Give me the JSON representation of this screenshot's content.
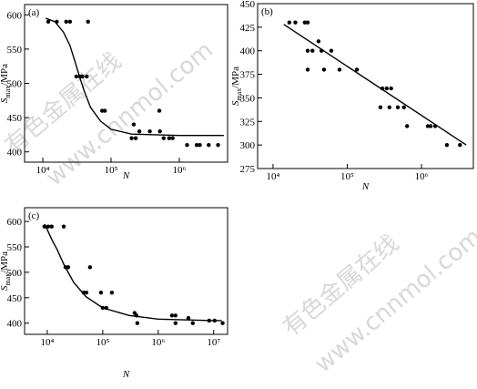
{
  "chart_data": [
    {
      "type": "scatter",
      "label": "(a)",
      "xlabel": "N",
      "ylabel": {
        "symbol": "S",
        "subscript": "max",
        "unit": "/MPa"
      },
      "xscale": "log",
      "xlim": [
        5400,
        5100000
      ],
      "ylim": [
        385,
        615
      ],
      "xticks": [
        {
          "value": 10000,
          "label": "10⁴"
        },
        {
          "value": 100000,
          "label": "10⁵"
        },
        {
          "value": 1000000,
          "label": "10⁶"
        }
      ],
      "yticks": [
        400,
        450,
        500,
        550,
        600
      ],
      "color": "#000000",
      "points": {
        "x": [
          12000,
          16000,
          22000,
          25000,
          46000,
          31000,
          35000,
          38000,
          44000,
          74000,
          81000,
          215000,
          510000,
          200000,
          230000,
          260000,
          370000,
          520000,
          590000,
          710000,
          800000,
          1300000,
          1800000,
          2000000,
          2700000,
          3700000
        ],
        "values": [
          590,
          590,
          590,
          590,
          590,
          510,
          510,
          510,
          510,
          460,
          460,
          440,
          460,
          420,
          420,
          430,
          430,
          430,
          420,
          420,
          420,
          410,
          410,
          410,
          410,
          410
        ]
      },
      "fit": {
        "x": [
          11000,
          15000,
          20000,
          25000,
          30000,
          35000,
          40000,
          50000,
          70000,
          100000,
          200000,
          1000000,
          4500000
        ],
        "values": [
          595,
          590,
          575,
          555,
          530,
          508,
          490,
          465,
          445,
          433,
          426,
          424,
          424
        ]
      }
    },
    {
      "type": "scatter",
      "label": "(b)",
      "xlabel": "N",
      "ylabel": {
        "symbol": "S",
        "subscript": "max",
        "unit": "/MPa"
      },
      "xscale": "log",
      "xlim": [
        6200,
        5000000
      ],
      "ylim": [
        275,
        450
      ],
      "xticks": [
        {
          "value": 10000,
          "label": "10⁴"
        },
        {
          "value": 100000,
          "label": "10⁵"
        },
        {
          "value": 1000000,
          "label": "10⁶"
        }
      ],
      "yticks": [
        275,
        300,
        325,
        350,
        375,
        400,
        425,
        450
      ],
      "color": "#000000",
      "points": {
        "x": [
          16600,
          20000,
          26800,
          29300,
          29300,
          34000,
          29300,
          48600,
          78700,
          135000,
          41000,
          45000,
          61000,
          297000,
          340000,
          390000,
          280000,
          370000,
          480000,
          580000,
          640000,
          1220000,
          1330000,
          1530000,
          2200000,
          3300000
        ],
        "values": [
          430,
          430,
          430,
          430,
          400,
          400,
          380,
          380,
          380,
          380,
          410,
          400,
          400,
          360,
          360,
          360,
          340,
          340,
          340,
          340,
          320,
          320,
          320,
          320,
          300,
          300
        ]
      },
      "fit": {
        "x": [
          14000,
          4000000
        ],
        "values": [
          428,
          300
        ]
      }
    },
    {
      "type": "scatter",
      "label": "(c)",
      "xlabel": "N",
      "ylabel": {
        "symbol": "S",
        "subscript": "max",
        "unit": "/MPa"
      },
      "xscale": "log",
      "xlim": [
        3900,
        17800000
      ],
      "ylim": [
        378,
        627
      ],
      "xticks": [
        {
          "value": 10000,
          "label": "10⁴"
        },
        {
          "value": 100000,
          "label": "10⁵"
        },
        {
          "value": 1000000,
          "label": "10⁶"
        },
        {
          "value": 10000000,
          "label": "10⁷"
        }
      ],
      "yticks": [
        400,
        450,
        500,
        550,
        600
      ],
      "color": "#000000",
      "points": {
        "x": [
          8900,
          10400,
          12000,
          19800,
          21300,
          23800,
          45300,
          50700,
          58900,
          93000,
          146000,
          100000,
          116000,
          375000,
          405000,
          420000,
          1770000,
          2050000,
          2050000,
          3500000,
          4200000,
          8300000,
          10400000,
          14500000
        ],
        "values": [
          590,
          590,
          590,
          590,
          510,
          510,
          460,
          460,
          510,
          460,
          460,
          430,
          430,
          420,
          415,
          400,
          415,
          415,
          400,
          410,
          400,
          405,
          405,
          400
        ]
      },
      "fit": {
        "x": [
          9000,
          12000,
          15000,
          20000,
          30000,
          50000,
          100000,
          300000,
          1000000,
          10000000,
          14000000
        ],
        "values": [
          595,
          565,
          545,
          515,
          480,
          452,
          430,
          415,
          408,
          405,
          405
        ]
      }
    }
  ],
  "watermark": [
    "有色金属在线",
    "www.cnnmol.com"
  ]
}
